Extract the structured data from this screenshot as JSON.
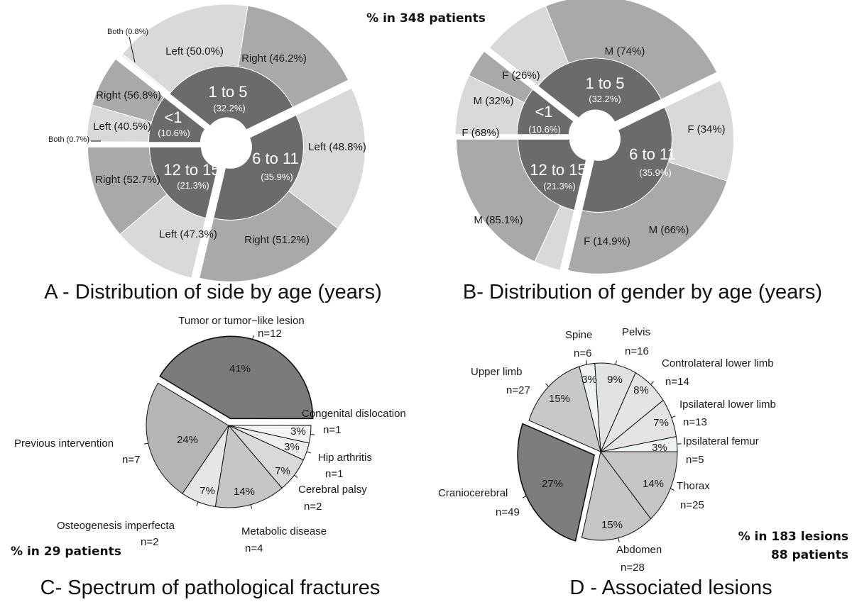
{
  "header": {
    "total": "% in 348 patients"
  },
  "colors": {
    "inner": "#6b6b6b",
    "light": "#d9d9d9",
    "medium": "#a9a9a7",
    "both": "#ececec",
    "dark": "#7b7b7b"
  },
  "chart_data": [
    {
      "type": "pie",
      "subtype": "nested-donut",
      "title": "A - Distribution of side by age (years)",
      "groups": [
        {
          "label": "<1",
          "pct_label": "(10.6%)",
          "value": 10.6,
          "outer": [
            {
              "display": "Both (0.7%)",
              "value": 0.7,
              "tone": "both"
            },
            {
              "display": "Left (40.5%)",
              "value": 40.5,
              "tone": "light"
            },
            {
              "display": "Right (56.8%)",
              "value": 56.8,
              "tone": "medium"
            }
          ]
        },
        {
          "label": "1 to 5",
          "pct_label": "(32.2%)",
          "value": 32.2,
          "outer": [
            {
              "display": "Both (0.8%)",
              "value": 0.8,
              "tone": "both"
            },
            {
              "display": "Left (50.0%)",
              "value": 50.0,
              "tone": "light"
            },
            {
              "display": "Right (46.2%)",
              "value": 46.2,
              "tone": "medium"
            }
          ]
        },
        {
          "label": "6 to 11",
          "pct_label": "(35.9%)",
          "value": 35.9,
          "outer": [
            {
              "display": "Left (48.8%)",
              "value": 48.8,
              "tone": "light"
            },
            {
              "display": "Right (51.2%)",
              "value": 51.2,
              "tone": "medium"
            }
          ]
        },
        {
          "label": "12 to 15",
          "pct_label": "(21.3%)",
          "value": 21.3,
          "outer": [
            {
              "display": "Left (47.3%)",
              "value": 47.3,
              "tone": "light"
            },
            {
              "display": "Right (52.7%)",
              "value": 52.7,
              "tone": "medium"
            }
          ]
        }
      ]
    },
    {
      "type": "pie",
      "subtype": "nested-donut",
      "title": "B- Distribution of gender by age (years)",
      "groups": [
        {
          "label": "<1",
          "pct_label": "(10.6%)",
          "value": 10.6,
          "outer": [
            {
              "display": "F (68%)",
              "value": 68,
              "tone": "light"
            },
            {
              "display": "M (32%)",
              "value": 32,
              "tone": "medium"
            }
          ]
        },
        {
          "label": "1 to 5",
          "pct_label": "(32.2%)",
          "value": 32.2,
          "outer": [
            {
              "display": "F (26%)",
              "value": 26,
              "tone": "light"
            },
            {
              "display": "M (74%)",
              "value": 74,
              "tone": "medium"
            }
          ]
        },
        {
          "label": "6 to 11",
          "pct_label": "(35.9%)",
          "value": 35.9,
          "outer": [
            {
              "display": "F (34%)",
              "value": 34,
              "tone": "light"
            },
            {
              "display": "M (66%)",
              "value": 66,
              "tone": "medium"
            }
          ]
        },
        {
          "label": "12 to 15",
          "pct_label": "(21.3%)",
          "value": 21.3,
          "outer": [
            {
              "display": "F (14.9%)",
              "value": 14.9,
              "tone": "light"
            },
            {
              "display": "M (85.1%)",
              "value": 85.1,
              "tone": "medium"
            }
          ]
        }
      ]
    },
    {
      "type": "pie",
      "title": "C- Spectrum of pathological fractures",
      "note": "% in 29 patients",
      "slices": [
        {
          "label": "Tumor or tumor−like lesion",
          "n": "n=12",
          "value": 12,
          "pct": "41%",
          "color": "#7b7b7b",
          "exploded": true
        },
        {
          "label": "Congenital dislocation",
          "n": "n=1",
          "value": 1,
          "pct": "3%",
          "color": "#f3f3f3"
        },
        {
          "label": "Hip arthritis",
          "n": "n=1",
          "value": 1,
          "pct": "3%",
          "color": "#ededed"
        },
        {
          "label": "Cerebral palsy",
          "n": "n=2",
          "value": 2,
          "pct": "7%",
          "color": "#d9d9d9"
        },
        {
          "label": "Metabolic disease",
          "n": "n=4",
          "value": 4,
          "pct": "14%",
          "color": "#c6c6c6"
        },
        {
          "label": "Osteogenesis imperfecta",
          "n": "n=2",
          "value": 2,
          "pct": "7%",
          "color": "#e6e6e6"
        },
        {
          "label": "Previous intervention",
          "n": "n=7",
          "value": 7,
          "pct": "24%",
          "color": "#b5b5b5"
        }
      ]
    },
    {
      "type": "pie",
      "title": "D - Associated lesions",
      "note": [
        "% in 183 lesions",
        "88 patients"
      ],
      "slices": [
        {
          "label": "Ipsilateral femur",
          "n": "n=5",
          "value": 5,
          "pct": "3%",
          "color": "#eef2f2"
        },
        {
          "label": "Ipsilateral lower limb",
          "n": "n=13",
          "value": 13,
          "pct": "7%",
          "color": "#e4e4e4"
        },
        {
          "label": "Controlateral lower limb",
          "n": "n=14",
          "value": 14,
          "pct": "8%",
          "color": "#e4e4e4"
        },
        {
          "label": "Pelvis",
          "n": "n=16",
          "value": 16,
          "pct": "9%",
          "color": "#e2e2e2"
        },
        {
          "label": "Spine",
          "n": "n=6",
          "value": 6,
          "pct": "3%",
          "color": "#eef2f2"
        },
        {
          "label": "Upper limb",
          "n": "n=27",
          "value": 27,
          "pct": "15%",
          "color": "#c8c8c8"
        },
        {
          "label": "Craniocerebral",
          "n": "n=49",
          "value": 49,
          "pct": "27%",
          "color": "#7d7d7d",
          "exploded": true
        },
        {
          "label": "Abdomen",
          "n": "n=28",
          "value": 28,
          "pct": "15%",
          "color": "#c6c6c6"
        },
        {
          "label": "Thorax",
          "n": "n=25",
          "value": 25,
          "pct": "14%",
          "color": "#c6c6c6"
        }
      ]
    }
  ]
}
